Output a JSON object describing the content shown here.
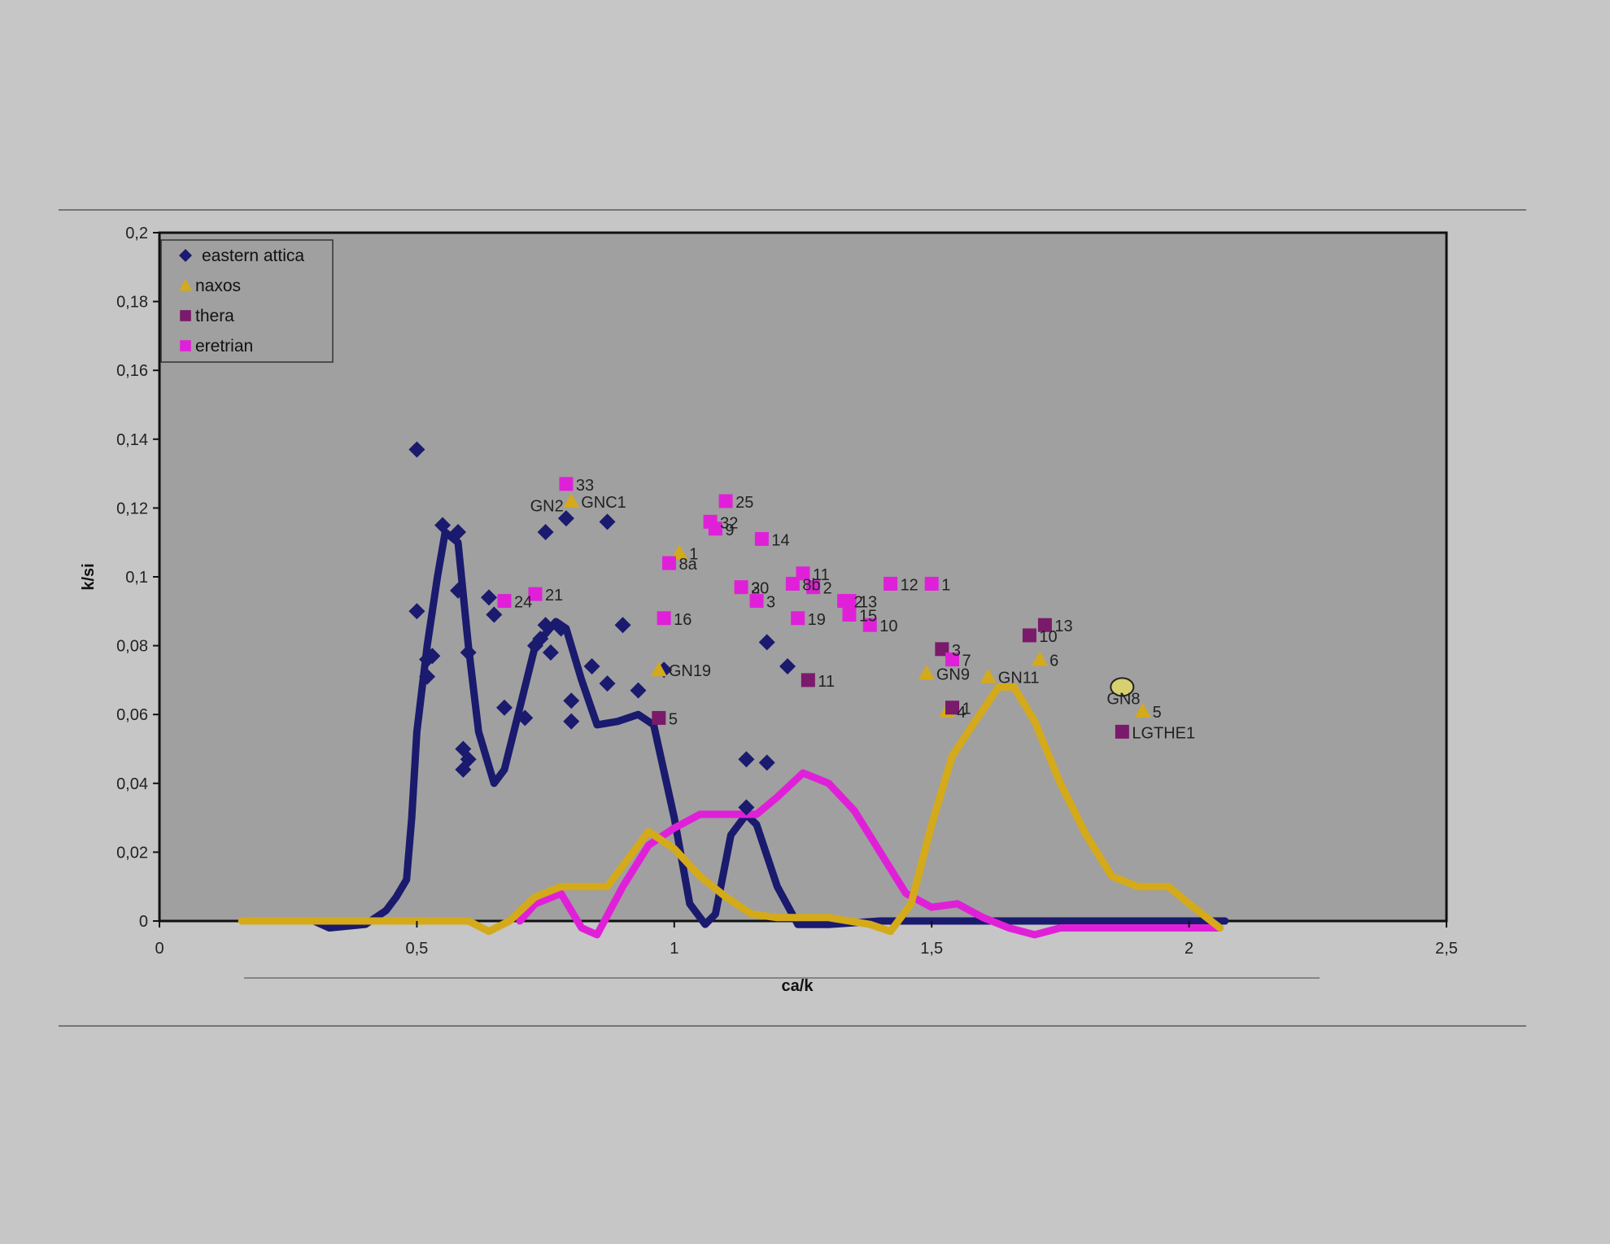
{
  "chart_data": {
    "type": "scatter",
    "title": "",
    "xlabel": "ca/k",
    "ylabel": "k/si",
    "xlim": [
      0,
      2.5
    ],
    "ylim": [
      0,
      0.2
    ],
    "xticks": [
      "0",
      "0,5",
      "1",
      "1,5",
      "2",
      "2,5"
    ],
    "yticks": [
      "0",
      "0,02",
      "0,04",
      "0,06",
      "0,08",
      "0,1",
      "0,12",
      "0,14",
      "0,16",
      "0,18",
      "0,2"
    ],
    "grid": false,
    "legend_position": "top-left",
    "colors": {
      "background": "#c6c6c6",
      "plot_area": "#a0a0a0",
      "eastern_attica": "#1a1a6e",
      "naxos": "#d4aa1a",
      "thera": "#7a1a6a",
      "eretrian": "#e020d8"
    },
    "series": [
      {
        "name": "eastern attica",
        "marker": "diamond",
        "points": [
          {
            "x": 0.5,
            "y": 0.137
          },
          {
            "x": 0.5,
            "y": 0.09
          },
          {
            "x": 0.52,
            "y": 0.076
          },
          {
            "x": 0.53,
            "y": 0.077
          },
          {
            "x": 0.52,
            "y": 0.071
          },
          {
            "x": 0.55,
            "y": 0.115
          },
          {
            "x": 0.58,
            "y": 0.113
          },
          {
            "x": 0.58,
            "y": 0.096
          },
          {
            "x": 0.6,
            "y": 0.078
          },
          {
            "x": 0.59,
            "y": 0.05
          },
          {
            "x": 0.6,
            "y": 0.047
          },
          {
            "x": 0.59,
            "y": 0.044
          },
          {
            "x": 0.64,
            "y": 0.094
          },
          {
            "x": 0.65,
            "y": 0.089
          },
          {
            "x": 0.67,
            "y": 0.062
          },
          {
            "x": 0.71,
            "y": 0.059
          },
          {
            "x": 0.73,
            "y": 0.08
          },
          {
            "x": 0.74,
            "y": 0.082
          },
          {
            "x": 0.75,
            "y": 0.086
          },
          {
            "x": 0.76,
            "y": 0.078
          },
          {
            "x": 0.78,
            "y": 0.085
          },
          {
            "x": 0.75,
            "y": 0.113
          },
          {
            "x": 0.79,
            "y": 0.117
          },
          {
            "x": 0.87,
            "y": 0.116
          },
          {
            "x": 0.8,
            "y": 0.064
          },
          {
            "x": 0.8,
            "y": 0.058
          },
          {
            "x": 0.84,
            "y": 0.074
          },
          {
            "x": 0.87,
            "y": 0.069
          },
          {
            "x": 0.9,
            "y": 0.086
          },
          {
            "x": 0.93,
            "y": 0.067
          },
          {
            "x": 0.98,
            "y": 0.073
          },
          {
            "x": 1.14,
            "y": 0.047
          },
          {
            "x": 1.18,
            "y": 0.046
          },
          {
            "x": 1.14,
            "y": 0.033
          },
          {
            "x": 1.18,
            "y": 0.081
          },
          {
            "x": 1.22,
            "y": 0.074
          }
        ]
      },
      {
        "name": "naxos",
        "marker": "triangle",
        "points": [
          {
            "x": 0.8,
            "y": 0.122,
            "label": "GNC1"
          },
          {
            "x": 1.01,
            "y": 0.107,
            "label": "1"
          },
          {
            "x": 0.97,
            "y": 0.073,
            "label": "GN19"
          },
          {
            "x": 1.13,
            "y": 0.097,
            "label": "3"
          },
          {
            "x": 1.49,
            "y": 0.072,
            "label": "GN9"
          },
          {
            "x": 1.53,
            "y": 0.061,
            "label": "4"
          },
          {
            "x": 1.61,
            "y": 0.071,
            "label": "GN11"
          },
          {
            "x": 1.71,
            "y": 0.076,
            "label": "6"
          },
          {
            "x": 1.91,
            "y": 0.061,
            "label": "5"
          }
        ],
        "extra_labels": [
          "GN2",
          "GN8"
        ]
      },
      {
        "name": "thera",
        "marker": "square",
        "points": [
          {
            "x": 0.97,
            "y": 0.059,
            "label": "5"
          },
          {
            "x": 1.26,
            "y": 0.07,
            "label": "11"
          },
          {
            "x": 1.52,
            "y": 0.079,
            "label": "3"
          },
          {
            "x": 1.54,
            "y": 0.062,
            "label": "1"
          },
          {
            "x": 1.69,
            "y": 0.083,
            "label": "10"
          },
          {
            "x": 1.72,
            "y": 0.086,
            "label": "13"
          },
          {
            "x": 1.87,
            "y": 0.055,
            "label": "LGTHE1"
          }
        ]
      },
      {
        "name": "eretrian",
        "marker": "square",
        "points": [
          {
            "x": 0.79,
            "y": 0.127,
            "label": "33"
          },
          {
            "x": 1.1,
            "y": 0.122,
            "label": "25"
          },
          {
            "x": 1.07,
            "y": 0.116,
            "label": "32"
          },
          {
            "x": 1.08,
            "y": 0.114,
            "label": "9"
          },
          {
            "x": 1.17,
            "y": 0.111,
            "label": "14"
          },
          {
            "x": 0.99,
            "y": 0.104,
            "label": "8a"
          },
          {
            "x": 0.67,
            "y": 0.093,
            "label": "24"
          },
          {
            "x": 0.73,
            "y": 0.095,
            "label": "21"
          },
          {
            "x": 0.98,
            "y": 0.088,
            "label": "16"
          },
          {
            "x": 1.13,
            "y": 0.097,
            "label": "20"
          },
          {
            "x": 1.16,
            "y": 0.093,
            "label": "3"
          },
          {
            "x": 1.23,
            "y": 0.098,
            "label": "8b"
          },
          {
            "x": 1.25,
            "y": 0.101,
            "label": "11"
          },
          {
            "x": 1.27,
            "y": 0.097,
            "label": "2"
          },
          {
            "x": 1.24,
            "y": 0.088,
            "label": "19"
          },
          {
            "x": 1.34,
            "y": 0.093,
            "label": "13"
          },
          {
            "x": 1.33,
            "y": 0.093,
            "label": "2"
          },
          {
            "x": 1.34,
            "y": 0.089,
            "label": "15"
          },
          {
            "x": 1.38,
            "y": 0.086,
            "label": "10"
          },
          {
            "x": 1.42,
            "y": 0.098,
            "label": "12"
          },
          {
            "x": 1.5,
            "y": 0.098,
            "label": "1"
          },
          {
            "x": 1.54,
            "y": 0.076,
            "label": "7"
          }
        ]
      }
    ],
    "highlight": {
      "x": 1.87,
      "y": 0.068,
      "shape": "circle",
      "fill": "#d8d070"
    },
    "curves": [
      {
        "name": "eastern attica",
        "color": "#1a1a6e",
        "points": [
          [
            0.3,
            0
          ],
          [
            0.33,
            -0.002
          ],
          [
            0.4,
            -0.001
          ],
          [
            0.44,
            0.003
          ],
          [
            0.46,
            0.007
          ],
          [
            0.48,
            0.012
          ],
          [
            0.49,
            0.03
          ],
          [
            0.5,
            0.055
          ],
          [
            0.52,
            0.08
          ],
          [
            0.54,
            0.1
          ],
          [
            0.555,
            0.113
          ],
          [
            0.58,
            0.11
          ],
          [
            0.6,
            0.08
          ],
          [
            0.62,
            0.055
          ],
          [
            0.65,
            0.04
          ],
          [
            0.67,
            0.044
          ],
          [
            0.7,
            0.062
          ],
          [
            0.73,
            0.08
          ],
          [
            0.77,
            0.087
          ],
          [
            0.79,
            0.085
          ],
          [
            0.82,
            0.07
          ],
          [
            0.85,
            0.057
          ],
          [
            0.89,
            0.058
          ],
          [
            0.93,
            0.06
          ],
          [
            0.96,
            0.057
          ],
          [
            1.0,
            0.03
          ],
          [
            1.03,
            0.005
          ],
          [
            1.06,
            -0.001
          ],
          [
            1.08,
            0.002
          ],
          [
            1.11,
            0.025
          ],
          [
            1.14,
            0.031
          ],
          [
            1.16,
            0.028
          ],
          [
            1.2,
            0.01
          ],
          [
            1.24,
            -0.001
          ],
          [
            1.3,
            -0.001
          ],
          [
            1.4,
            0
          ],
          [
            1.7,
            0
          ],
          [
            2.0,
            0
          ],
          [
            2.07,
            0
          ]
        ]
      },
      {
        "name": "eretrian",
        "color": "#e020d8",
        "points": [
          [
            0.7,
            0
          ],
          [
            0.73,
            0.005
          ],
          [
            0.78,
            0.008
          ],
          [
            0.82,
            -0.002
          ],
          [
            0.85,
            -0.004
          ],
          [
            0.9,
            0.01
          ],
          [
            0.95,
            0.022
          ],
          [
            1.0,
            0.027
          ],
          [
            1.05,
            0.031
          ],
          [
            1.1,
            0.031
          ],
          [
            1.16,
            0.031
          ],
          [
            1.2,
            0.036
          ],
          [
            1.25,
            0.043
          ],
          [
            1.3,
            0.04
          ],
          [
            1.35,
            0.032
          ],
          [
            1.4,
            0.02
          ],
          [
            1.45,
            0.008
          ],
          [
            1.5,
            0.004
          ],
          [
            1.55,
            0.005
          ],
          [
            1.6,
            0.001
          ],
          [
            1.65,
            -0.002
          ],
          [
            1.7,
            -0.004
          ],
          [
            1.75,
            -0.002
          ],
          [
            1.85,
            -0.002
          ],
          [
            2.0,
            -0.002
          ],
          [
            2.06,
            -0.002
          ]
        ]
      },
      {
        "name": "naxos",
        "color": "#d4aa1a",
        "points": [
          [
            0.16,
            0
          ],
          [
            0.3,
            0
          ],
          [
            0.45,
            0
          ],
          [
            0.6,
            0
          ],
          [
            0.64,
            -0.003
          ],
          [
            0.68,
            0
          ],
          [
            0.73,
            0.007
          ],
          [
            0.78,
            0.01
          ],
          [
            0.87,
            0.01
          ],
          [
            0.92,
            0.02
          ],
          [
            0.95,
            0.026
          ],
          [
            1.0,
            0.021
          ],
          [
            1.05,
            0.013
          ],
          [
            1.1,
            0.007
          ],
          [
            1.15,
            0.002
          ],
          [
            1.2,
            0.001
          ],
          [
            1.3,
            0.001
          ],
          [
            1.38,
            -0.001
          ],
          [
            1.42,
            -0.003
          ],
          [
            1.46,
            0.005
          ],
          [
            1.5,
            0.028
          ],
          [
            1.54,
            0.048
          ],
          [
            1.58,
            0.057
          ],
          [
            1.63,
            0.068
          ],
          [
            1.66,
            0.068
          ],
          [
            1.7,
            0.058
          ],
          [
            1.75,
            0.04
          ],
          [
            1.8,
            0.025
          ],
          [
            1.85,
            0.013
          ],
          [
            1.9,
            0.01
          ],
          [
            1.96,
            0.01
          ],
          [
            2.0,
            0.005
          ],
          [
            2.06,
            -0.002
          ]
        ]
      }
    ]
  }
}
